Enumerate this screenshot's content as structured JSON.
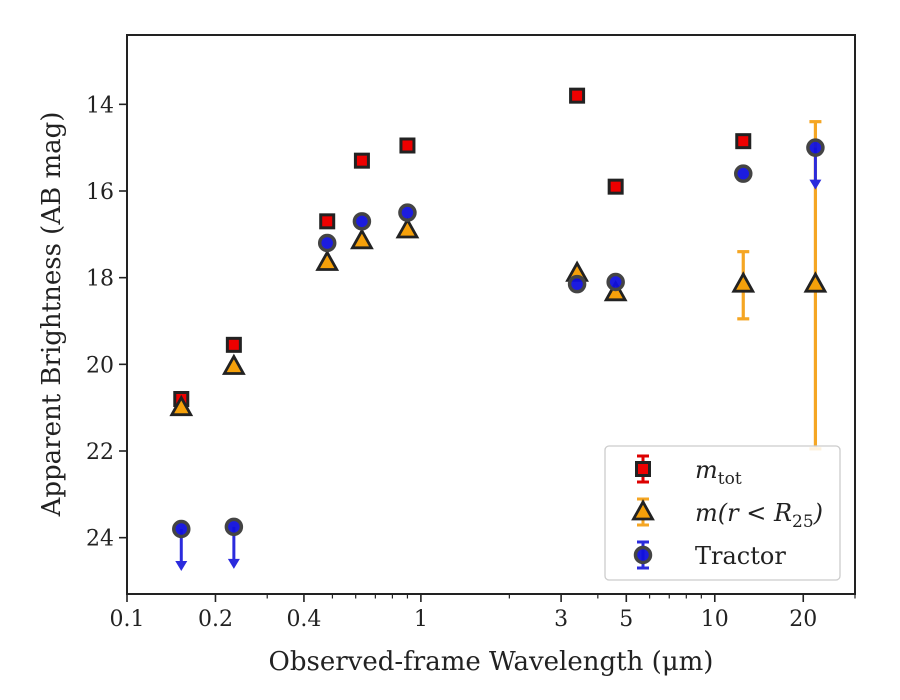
{
  "chart_data": {
    "type": "scatter",
    "xlabel": "Observed-frame Wavelength (μm)",
    "ylabel": "Apparent Brightness (AB mag)",
    "xscale": "log",
    "xlim": [
      0.1,
      30
    ],
    "ylim": [
      25.3,
      12.4
    ],
    "y_inverted": true,
    "grid": false,
    "legend_position": "bottom-right",
    "x_ticks": [
      {
        "value": 0.1,
        "label": "0.1"
      },
      {
        "value": 0.2,
        "label": "0.2"
      },
      {
        "value": 0.4,
        "label": "0.4"
      },
      {
        "value": 1,
        "label": "1"
      },
      {
        "value": 3,
        "label": "3"
      },
      {
        "value": 5,
        "label": "5"
      },
      {
        "value": 10,
        "label": "10"
      },
      {
        "value": 20,
        "label": "20"
      }
    ],
    "y_ticks": [
      {
        "value": 14,
        "label": "14"
      },
      {
        "value": 16,
        "label": "16"
      },
      {
        "value": 18,
        "label": "18"
      },
      {
        "value": 20,
        "label": "20"
      },
      {
        "value": 22,
        "label": "22"
      },
      {
        "value": 24,
        "label": "24"
      }
    ],
    "series": [
      {
        "name": "m_tot",
        "legend_label": {
          "base": "m",
          "sub": "tot"
        },
        "marker": "square",
        "color": "#ee0000",
        "ecolor": "#dd0000",
        "points": [
          {
            "x": 0.153,
            "y": 20.8
          },
          {
            "x": 0.231,
            "y": 19.55
          },
          {
            "x": 0.48,
            "y": 16.7
          },
          {
            "x": 0.63,
            "y": 15.3
          },
          {
            "x": 0.9,
            "y": 14.95
          },
          {
            "x": 3.4,
            "y": 13.8
          },
          {
            "x": 4.6,
            "y": 15.9
          },
          {
            "x": 12.5,
            "y": 14.85
          }
        ]
      },
      {
        "name": "m(r < R25)",
        "legend_label": {
          "base": "m(r < R",
          "sub": "25",
          "tail": ")"
        },
        "marker": "triangle",
        "color": "#f5a00a",
        "ecolor": "#f5a623",
        "points": [
          {
            "x": 0.153,
            "y": 21.0
          },
          {
            "x": 0.231,
            "y": 20.05
          },
          {
            "x": 0.48,
            "y": 17.65
          },
          {
            "x": 0.63,
            "y": 17.15
          },
          {
            "x": 0.9,
            "y": 16.9
          },
          {
            "x": 3.4,
            "y": 17.9
          },
          {
            "x": 4.6,
            "y": 18.35
          },
          {
            "x": 12.5,
            "y": 18.15,
            "yerr_low": 17.4,
            "yerr_high": 18.95
          },
          {
            "x": 22.0,
            "y": 18.15,
            "yerr_low": 14.4,
            "yerr_high": 21.95
          }
        ]
      },
      {
        "name": "Tractor",
        "legend_label": {
          "base": "Tractor"
        },
        "marker": "circle",
        "color": "#1010dd",
        "ecolor": "#2b2bdd",
        "points": [
          {
            "x": 0.153,
            "y": 23.8,
            "upper_limit": true
          },
          {
            "x": 0.231,
            "y": 23.75,
            "upper_limit": true
          },
          {
            "x": 0.48,
            "y": 17.2
          },
          {
            "x": 0.63,
            "y": 16.7
          },
          {
            "x": 0.9,
            "y": 16.5
          },
          {
            "x": 3.4,
            "y": 18.15
          },
          {
            "x": 4.6,
            "y": 18.1
          },
          {
            "x": 12.5,
            "y": 15.6
          },
          {
            "x": 22.0,
            "y": 15.0,
            "upper_limit": true
          }
        ]
      }
    ]
  }
}
